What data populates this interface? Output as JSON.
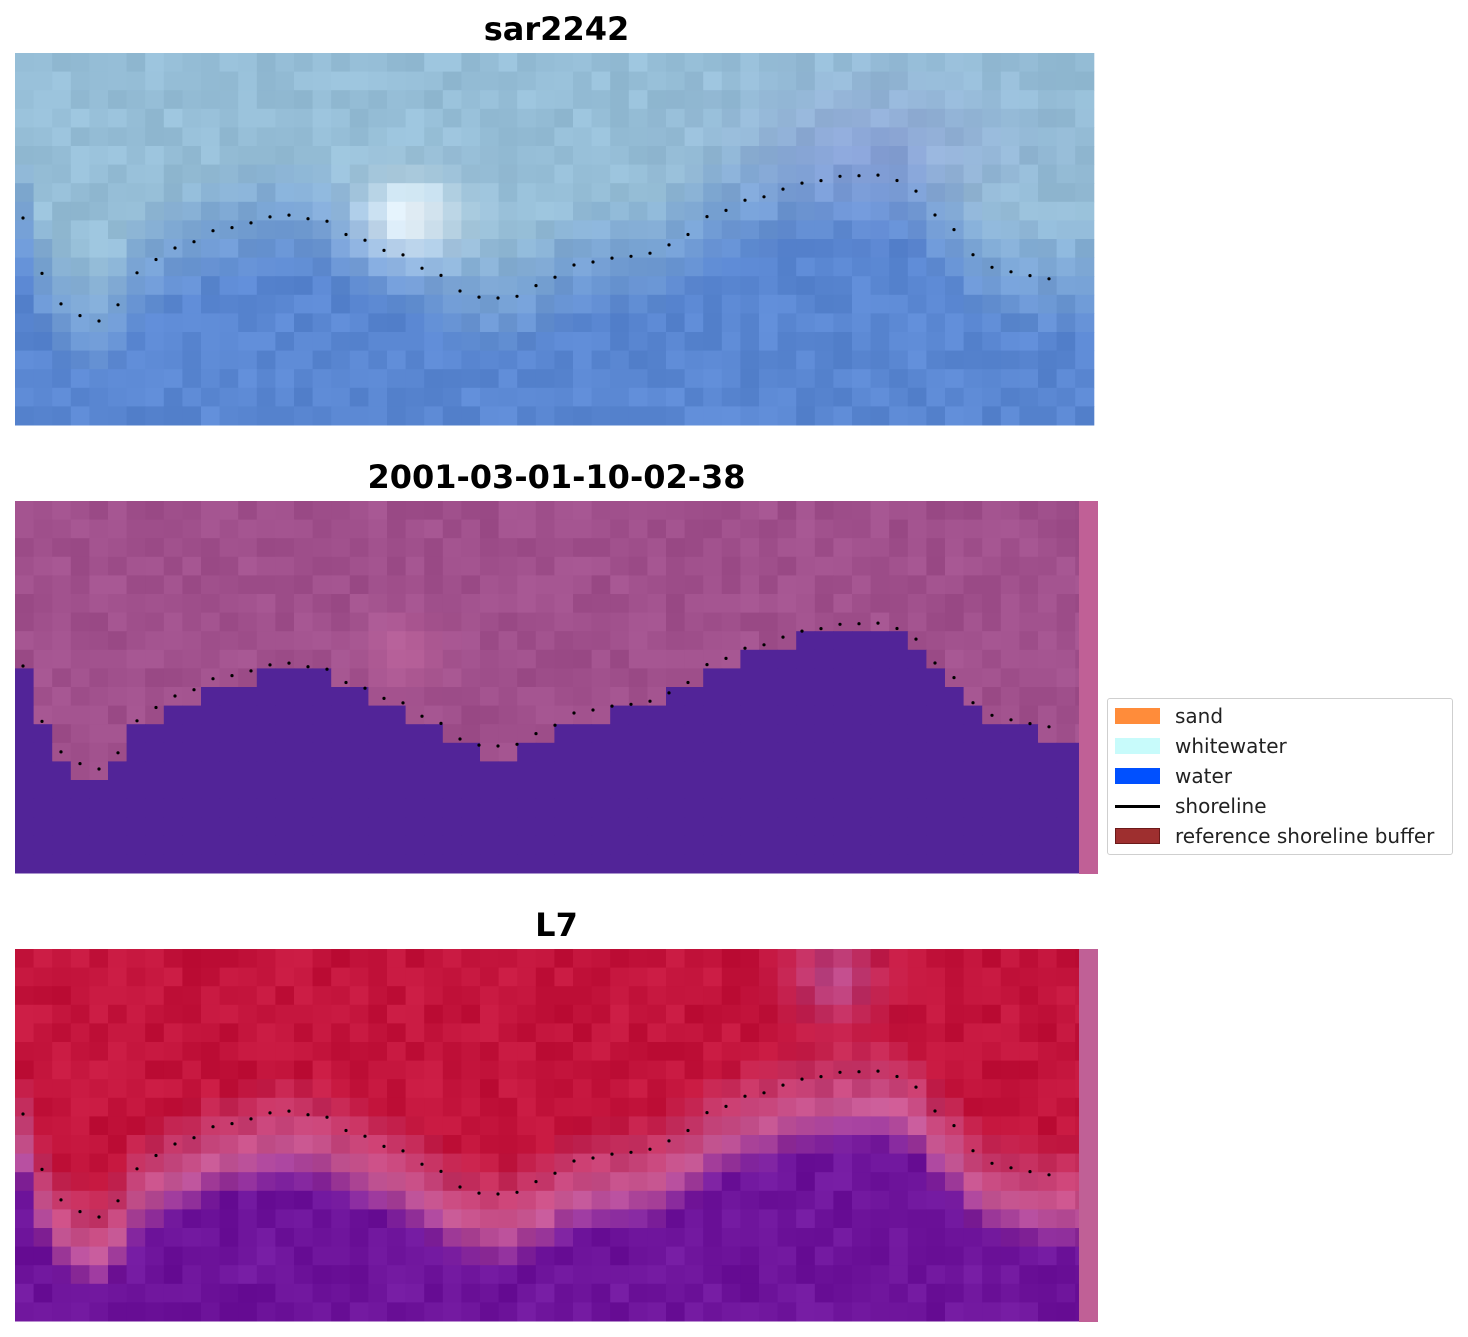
{
  "panels": [
    {
      "title": "sar2242"
    },
    {
      "title": "2001-03-01-10-02-38"
    },
    {
      "title": "L7"
    }
  ],
  "legend": {
    "placement": "right",
    "items": [
      {
        "label": "sand",
        "type": "patch",
        "color": "#ff8c3a"
      },
      {
        "label": "whitewater",
        "type": "patch",
        "color": "#c8fbfb"
      },
      {
        "label": "water",
        "type": "patch",
        "color": "#0050ff"
      },
      {
        "label": "shoreline",
        "type": "line",
        "color": "#000000"
      },
      {
        "label": "reference shoreline buffer",
        "type": "patch",
        "color": "#9e2f2f"
      }
    ]
  }
}
